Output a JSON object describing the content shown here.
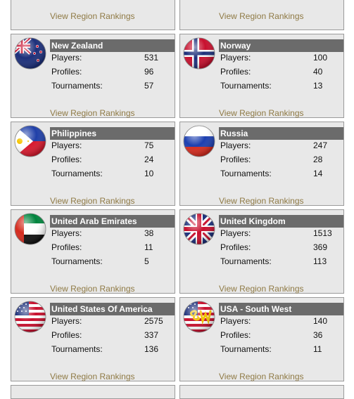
{
  "labels": {
    "players": "Players:",
    "profiles": "Profiles:",
    "tournaments": "Tournaments:",
    "link": "View Region Rankings"
  },
  "regions": [
    {
      "name": "New Zealand",
      "players": "531",
      "profiles": "96",
      "tournaments": "57",
      "flag": "new-zealand-flag-icon"
    },
    {
      "name": "Norway",
      "players": "100",
      "profiles": "40",
      "tournaments": "13",
      "flag": "norway-flag-icon"
    },
    {
      "name": "Philippines",
      "players": "75",
      "profiles": "24",
      "tournaments": "10",
      "flag": "philippines-flag-icon"
    },
    {
      "name": "Russia",
      "players": "247",
      "profiles": "28",
      "tournaments": "14",
      "flag": "russia-flag-icon"
    },
    {
      "name": "United Arab Emirates",
      "players": "38",
      "profiles": "11",
      "tournaments": "5",
      "flag": "uae-flag-icon"
    },
    {
      "name": "United Kingdom",
      "players": "1513",
      "profiles": "369",
      "tournaments": "113",
      "flag": "united-kingdom-flag-icon"
    },
    {
      "name": "United States Of America",
      "players": "2575",
      "profiles": "337",
      "tournaments": "136",
      "flag": "usa-flag-icon"
    },
    {
      "name": "USA - South West",
      "players": "140",
      "profiles": "36",
      "tournaments": "11",
      "flag": "usa-south-west-flag-icon"
    }
  ],
  "colors": {
    "card_bg": "#e8e8e8",
    "title_bar": "#6b6b6b",
    "link": "#8f7a45"
  }
}
